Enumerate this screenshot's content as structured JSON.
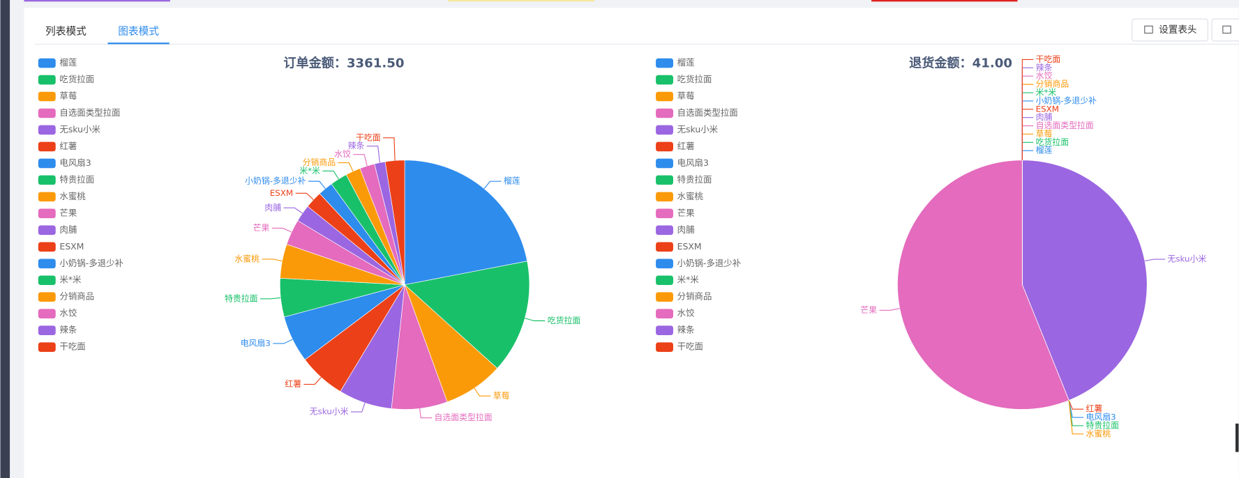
{
  "tabs": [
    "列表模式",
    "图表模式"
  ],
  "buttons": [
    "设置表头"
  ],
  "chart_data": [
    {
      "type": "pie",
      "title": "订单金额：3361.50",
      "categories": [
        "榴莲",
        "吃货拉面",
        "草莓",
        "自选面类型拉面",
        "无sku小米",
        "红薯",
        "电风扇3",
        "特贵拉面",
        "水蜜桃",
        "芒果",
        "肉脯",
        "ESXM",
        "小奶锅-多退少补",
        "米*米",
        "分销商品",
        "水饺",
        "辣条",
        "干吃面"
      ],
      "values": [
        738,
        495,
        261,
        243,
        233,
        205,
        205,
        168,
        149,
        112,
        75,
        75,
        65,
        75,
        65,
        65,
        47,
        84
      ],
      "colors": [
        "#2e8ced",
        "#19c06a",
        "#fb9a09",
        "#e46bbd",
        "#9b66e1",
        "#ec4018",
        "#2e8ced",
        "#19c06a",
        "#fb9a09",
        "#e46bbd",
        "#9b66e1",
        "#ec4018",
        "#2e8ced",
        "#19c06a",
        "#fb9a09",
        "#e46bbd",
        "#9b66e1",
        "#ec4018"
      ]
    },
    {
      "type": "pie",
      "title": "退货金额：41.00",
      "categories": [
        "榴莲",
        "吃货拉面",
        "草莓",
        "自选面类型拉面",
        "无sku小米",
        "红薯",
        "电风扇3",
        "特贵拉面",
        "水蜜桃",
        "芒果",
        "肉脯",
        "ESXM",
        "小奶锅-多退少补",
        "米*米",
        "分销商品",
        "水饺",
        "辣条",
        "干吃面"
      ],
      "values": [
        0,
        0,
        0,
        0,
        18,
        0,
        0,
        0,
        0,
        23,
        0,
        0,
        0,
        0,
        0,
        0,
        0,
        0
      ],
      "colors": [
        "#2e8ced",
        "#19c06a",
        "#fb9a09",
        "#e46bbd",
        "#9b66e1",
        "#ec4018",
        "#2e8ced",
        "#19c06a",
        "#fb9a09",
        "#e46bbd",
        "#9b66e1",
        "#ec4018",
        "#2e8ced",
        "#19c06a",
        "#fb9a09",
        "#e46bbd",
        "#9b66e1",
        "#ec4018"
      ]
    }
  ]
}
